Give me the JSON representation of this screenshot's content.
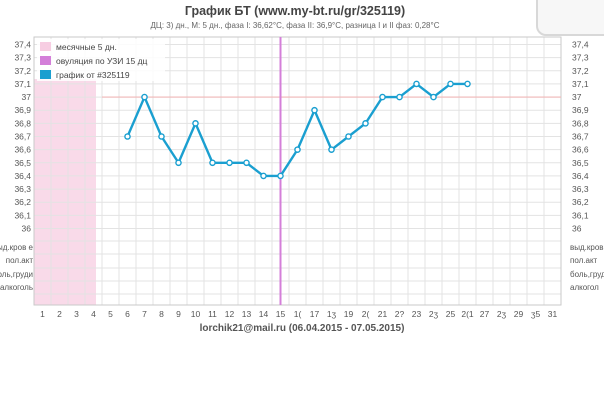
{
  "chart_data": {
    "type": "line",
    "title": "График БТ (www.my-bt.ru/gr/325119)",
    "subtitle": "ДЦ: 3) дн., М: 5 дн., фаза I: 36,62°C, фаза II: 36,9°C, разница I и II фаз: 0,28°C",
    "footer": "lorchik21@mail.ru (06.04.2015 - 07.05.2015)",
    "x_tick_labels": [
      "1",
      "2",
      "3",
      "4",
      "5",
      "6",
      "7",
      "8",
      "9",
      "10",
      "11",
      "12",
      "13",
      "14",
      "15",
      "1(",
      "17",
      "1ʒ",
      "19",
      "2(",
      "21",
      "2?",
      "23",
      "2ʒ",
      "25",
      "2(1",
      "27",
      "2ʒ",
      "29",
      "ʒ5",
      "31"
    ],
    "y_tick_labels": [
      "37,4",
      "37,3",
      "37,2",
      "37,1",
      "37",
      "36,9",
      "36,8",
      "36,7",
      "36,6",
      "36,5",
      "36,4",
      "36,3",
      "36,2",
      "36,1",
      "36"
    ],
    "ylim": [
      36.0,
      37.4
    ],
    "xlim": [
      1,
      31
    ],
    "series": [
      {
        "name": "график от #325119",
        "color": "#1a9fd0",
        "x": [
          6,
          7,
          8,
          9,
          10,
          11,
          12,
          13,
          14,
          15,
          16,
          17,
          18,
          19,
          20,
          21,
          22,
          23,
          24,
          25,
          26
        ],
        "values": [
          36.7,
          37.0,
          36.7,
          36.5,
          36.8,
          36.5,
          36.5,
          36.5,
          36.4,
          36.4,
          36.6,
          36.9,
          36.6,
          36.7,
          36.8,
          37.0,
          37.0,
          37.1,
          37.0,
          37.1,
          37.1
        ]
      }
    ],
    "legend": {
      "placement": "top-left",
      "entries": [
        {
          "label": "месячные 5 дн.",
          "color": "#f7cde2"
        },
        {
          "label": "овуляция по УЗИ 15 дц",
          "color": "#d47fd9"
        },
        {
          "label": "график от #325119",
          "color": "#1a9fd0"
        }
      ]
    },
    "menstruation_days": [
      1,
      5
    ],
    "ovulation_day": 15,
    "coverline": 37.0,
    "bottom_rows": [
      "выд.кров е",
      "пол.акт",
      "боль,груди",
      "алкоголь"
    ],
    "bottom_rows_right": [
      "выд.кров",
      "пол.акт",
      "боль,груд",
      "алкогол"
    ],
    "grid": true,
    "colors": {
      "line": "#1a9fd0",
      "menstruation": "#f7cde2",
      "ovulation": "#d47fd9",
      "coverline": "#f2b8b8",
      "grid": "#e3e3e3"
    }
  }
}
